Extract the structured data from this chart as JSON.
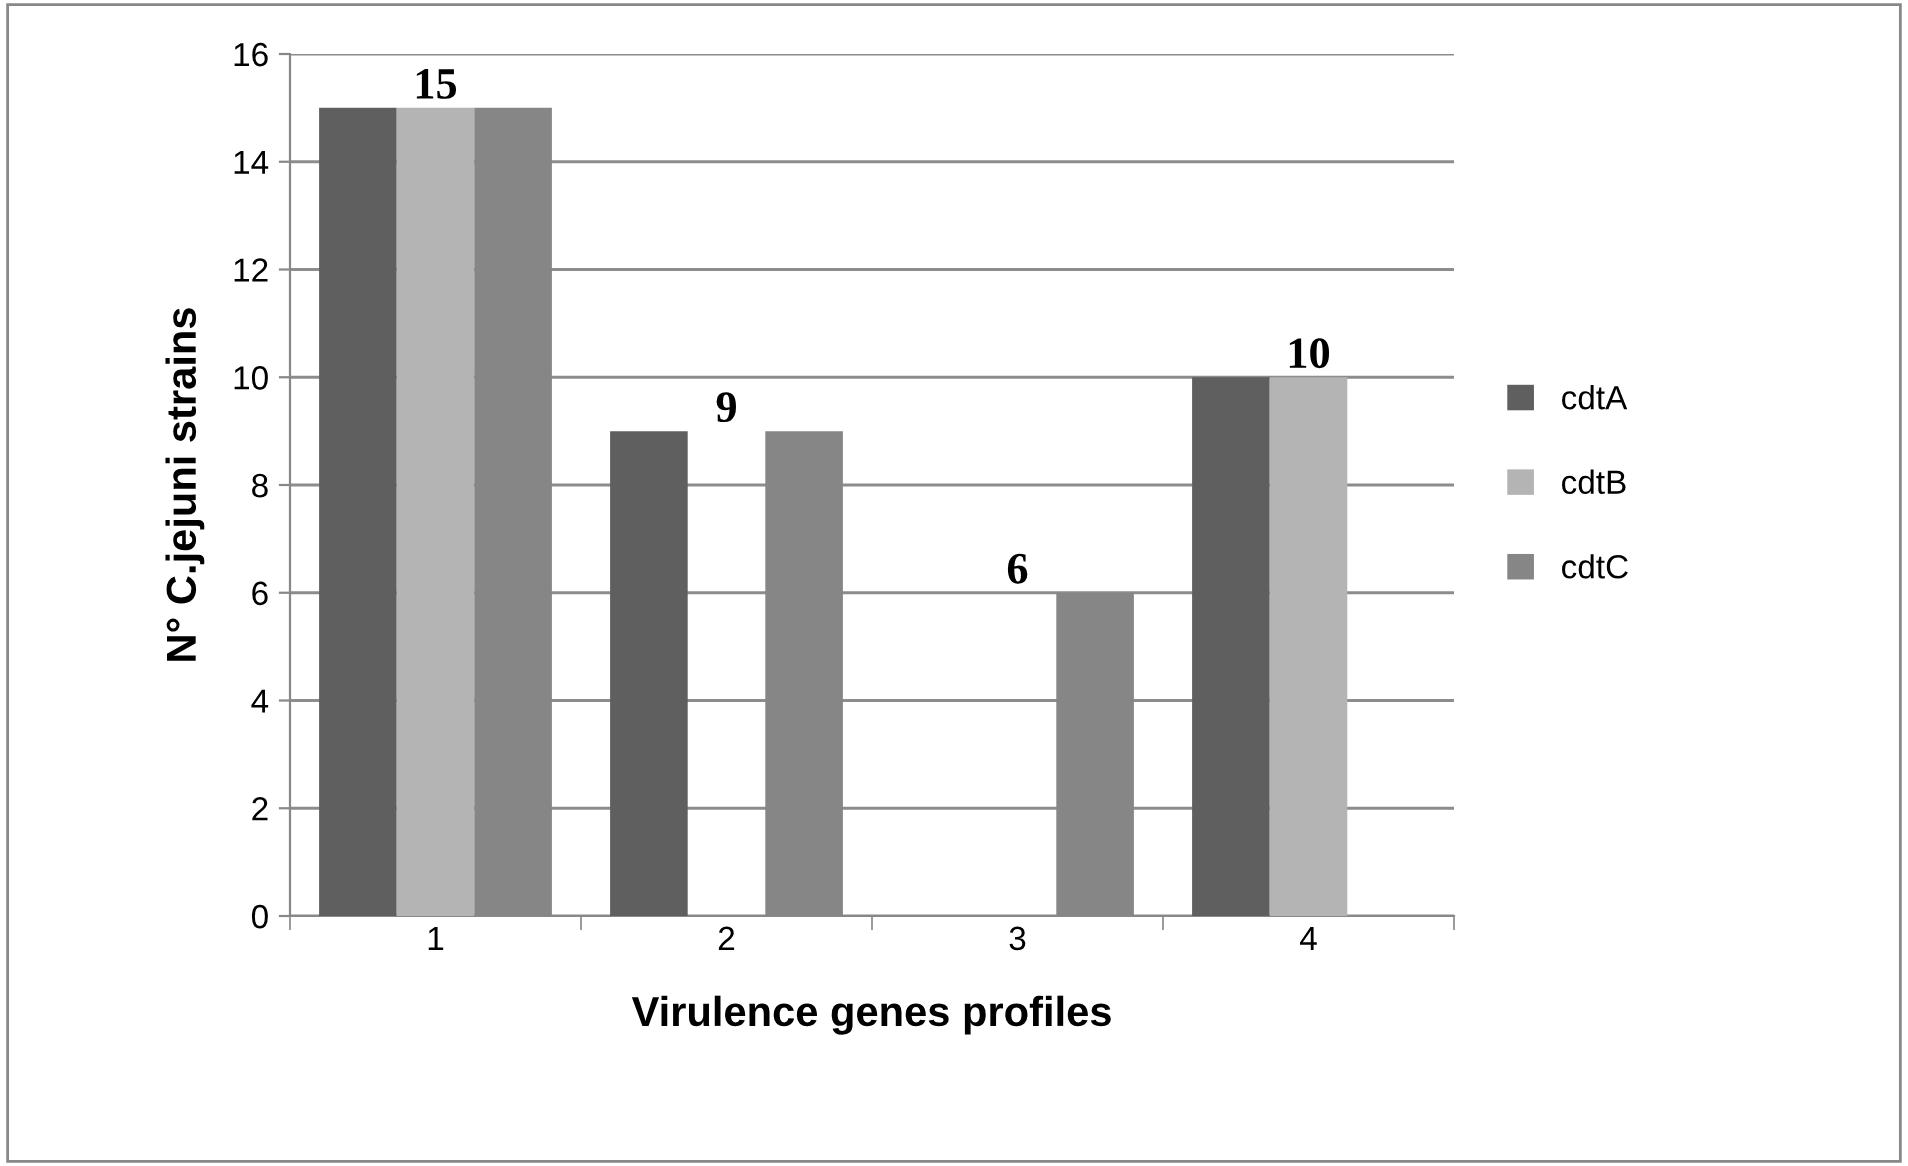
{
  "chart_data": {
    "type": "bar",
    "xlabel": "Virulence genes profiles",
    "ylabel": "N° C.jejuni strains",
    "categories": [
      "1",
      "2",
      "3",
      "4"
    ],
    "series": [
      {
        "name": "cdtA",
        "color": "#5f5f5f",
        "values": [
          15,
          9,
          0,
          10
        ]
      },
      {
        "name": "cdtB",
        "color": "#b4b4b4",
        "values": [
          15,
          0,
          0,
          10
        ]
      },
      {
        "name": "cdtC",
        "color": "#868686",
        "values": [
          15,
          9,
          6,
          0
        ]
      }
    ],
    "ylim": [
      0,
      16
    ],
    "yticks": [
      0,
      2,
      4,
      6,
      8,
      10,
      12,
      14,
      16
    ],
    "grid": "y",
    "legend": "right",
    "annotations": [
      "15",
      "9",
      "6",
      "10"
    ]
  }
}
